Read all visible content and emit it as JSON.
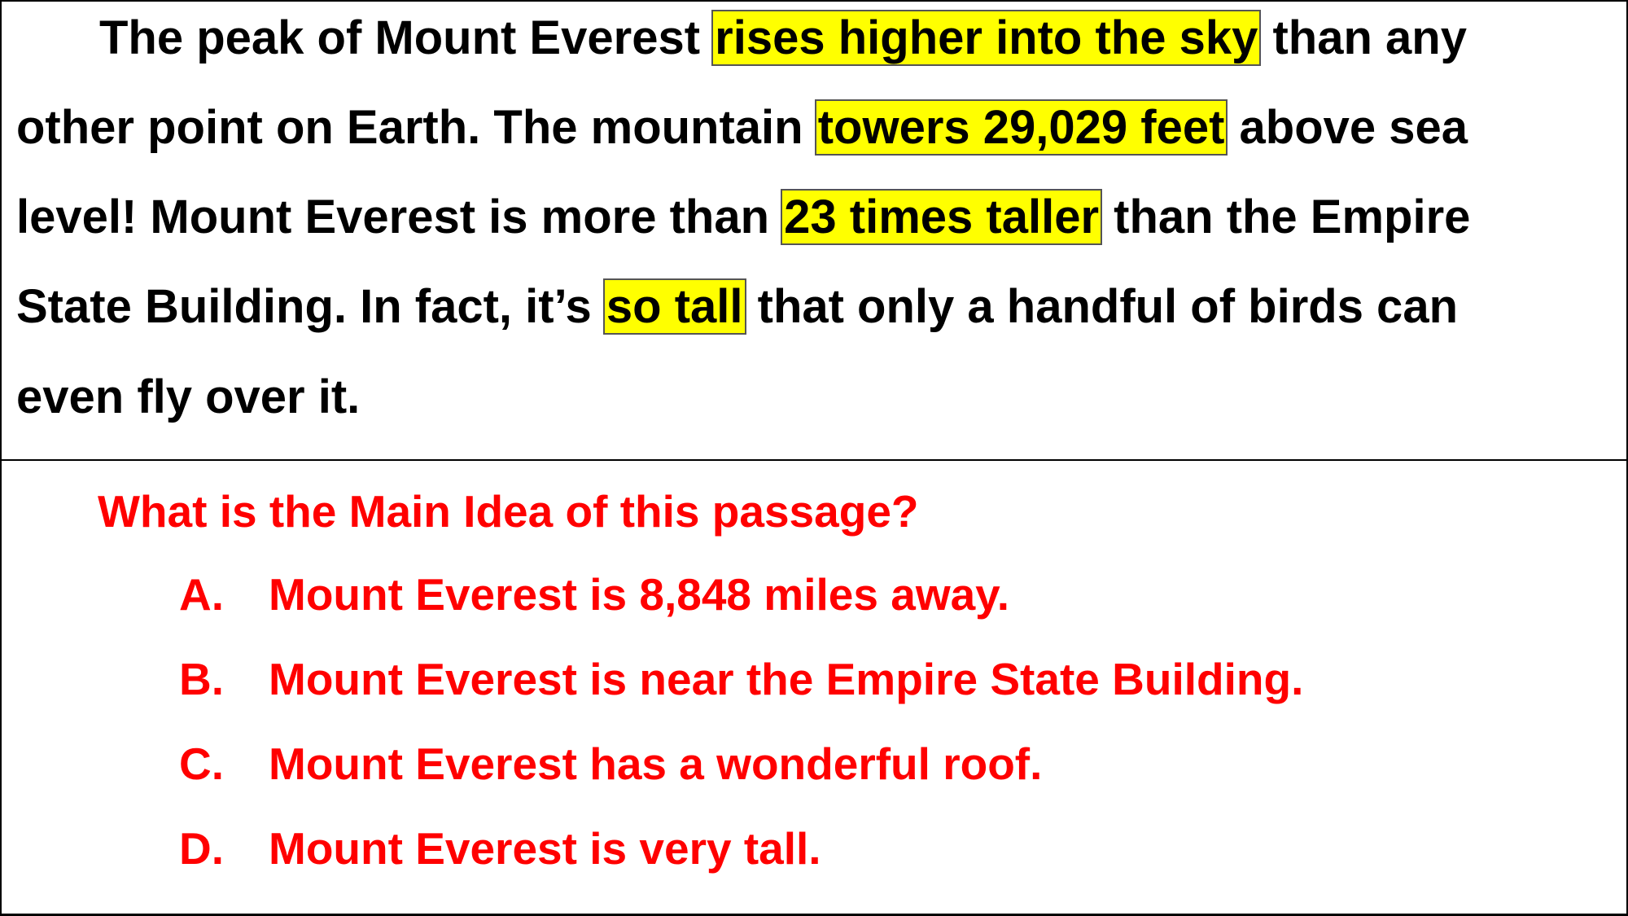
{
  "passage": {
    "line1": {
      "pre": "The peak of Mount Everest ",
      "highlight": "rises higher into the sky",
      "post": " than any"
    },
    "line2": {
      "pre": "other point on Earth.  The mountain ",
      "highlight": "towers 29,029 feet",
      "post": " above sea"
    },
    "line3": {
      "pre": "level!  Mount Everest is more than ",
      "highlight": "23 times taller",
      "post": " than the Empire"
    },
    "line4": {
      "pre": "State Building.  In fact, it’s ",
      "highlight": "so tall",
      "post": " that only a handful of birds can"
    },
    "line5": {
      "text": "even fly over it."
    }
  },
  "question": {
    "prompt": "What is the Main Idea of this passage?",
    "options": [
      {
        "letter": "A.",
        "text": "Mount Everest is 8,848 miles away."
      },
      {
        "letter": "B.",
        "text": "Mount Everest is near the Empire State Building."
      },
      {
        "letter": "C.",
        "text": "Mount Everest has a wonderful roof."
      },
      {
        "letter": "D.",
        "text": "Mount Everest is very tall."
      }
    ]
  },
  "colors": {
    "highlight": "#ffff00",
    "question_text": "#ff0000",
    "passage_text": "#000000"
  }
}
